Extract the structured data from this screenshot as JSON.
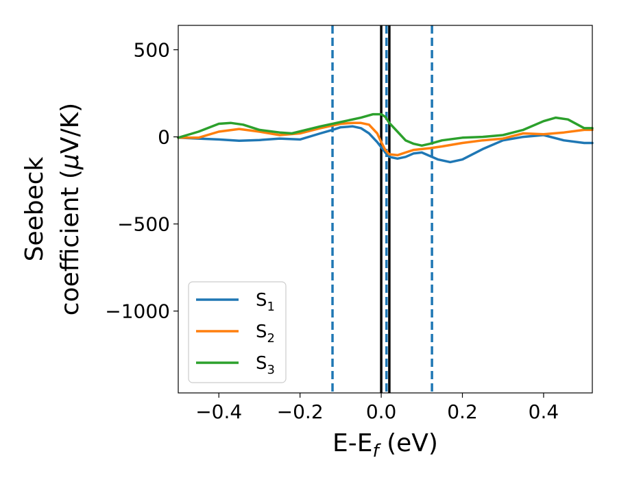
{
  "chart_data": {
    "type": "line",
    "title": "",
    "xlabel": {
      "main": "E-E",
      "sub": "f",
      "unit": " (eV)"
    },
    "ylabel": {
      "line1": "Seebeck",
      "line2": "coefficient  (",
      "mu": "μ",
      "line2_end": "V/K)"
    },
    "xlim": [
      -0.5,
      0.52
    ],
    "ylim": [
      -1470,
      640
    ],
    "xticks": [
      -0.4,
      -0.2,
      0.0,
      0.2,
      0.4
    ],
    "xtick_labels": [
      "−0.4",
      "−0.2",
      "0.0",
      "0.2",
      "0.4"
    ],
    "yticks": [
      500,
      0,
      -500,
      -1000
    ],
    "ytick_labels": [
      "500",
      "0",
      "−500",
      "−1000"
    ],
    "grid": false,
    "legend_position": "lower-left",
    "series": [
      {
        "name": "S",
        "sub": "1",
        "color": "#1f77b4",
        "x": [
          -0.5,
          -0.45,
          -0.4,
          -0.35,
          -0.3,
          -0.25,
          -0.2,
          -0.15,
          -0.12,
          -0.1,
          -0.07,
          -0.05,
          -0.03,
          -0.01,
          0.0,
          0.01,
          0.02,
          0.04,
          0.06,
          0.08,
          0.1,
          0.12,
          0.14,
          0.17,
          0.2,
          0.25,
          0.3,
          0.35,
          0.4,
          0.45,
          0.5,
          0.52
        ],
        "y": [
          -5,
          -10,
          -15,
          -22,
          -18,
          -10,
          -15,
          20,
          40,
          55,
          60,
          50,
          20,
          -30,
          -60,
          -90,
          -115,
          -125,
          -115,
          -95,
          -90,
          -110,
          -130,
          -145,
          -130,
          -70,
          -20,
          0,
          10,
          -20,
          -35,
          -35
        ]
      },
      {
        "name": "S",
        "sub": "2",
        "color": "#ff7f0e",
        "x": [
          -0.5,
          -0.45,
          -0.4,
          -0.35,
          -0.3,
          -0.25,
          -0.2,
          -0.15,
          -0.12,
          -0.1,
          -0.07,
          -0.05,
          -0.03,
          -0.01,
          0.0,
          0.01,
          0.02,
          0.04,
          0.06,
          0.08,
          0.1,
          0.12,
          0.15,
          0.2,
          0.25,
          0.3,
          0.35,
          0.4,
          0.45,
          0.5,
          0.52
        ],
        "y": [
          -5,
          -5,
          30,
          45,
          30,
          10,
          20,
          50,
          65,
          75,
          80,
          80,
          70,
          20,
          -30,
          -75,
          -100,
          -105,
          -90,
          -75,
          -70,
          -65,
          -55,
          -35,
          -20,
          -10,
          20,
          15,
          25,
          40,
          40
        ]
      },
      {
        "name": "S",
        "sub": "3",
        "color": "#2ca02c",
        "x": [
          -0.5,
          -0.45,
          -0.4,
          -0.37,
          -0.34,
          -0.3,
          -0.25,
          -0.22,
          -0.15,
          -0.1,
          -0.05,
          -0.02,
          0.0,
          0.01,
          0.02,
          0.04,
          0.06,
          0.08,
          0.1,
          0.12,
          0.15,
          0.2,
          0.25,
          0.3,
          0.35,
          0.4,
          0.43,
          0.46,
          0.5,
          0.52
        ],
        "y": [
          -5,
          30,
          75,
          80,
          70,
          40,
          25,
          20,
          60,
          85,
          110,
          130,
          130,
          115,
          80,
          30,
          -20,
          -40,
          -50,
          -40,
          -20,
          -5,
          0,
          10,
          40,
          90,
          110,
          100,
          50,
          50
        ]
      }
    ],
    "vlines": [
      {
        "x": -0.12,
        "style": "dashed",
        "color": "#1f77b4"
      },
      {
        "x": 0.0,
        "style": "solid",
        "color": "#000000"
      },
      {
        "x": 0.013,
        "style": "dashed",
        "color": "#1f77b4"
      },
      {
        "x": 0.02,
        "style": "solid",
        "color": "#000000"
      },
      {
        "x": 0.125,
        "style": "dashed",
        "color": "#1f77b4"
      }
    ]
  }
}
